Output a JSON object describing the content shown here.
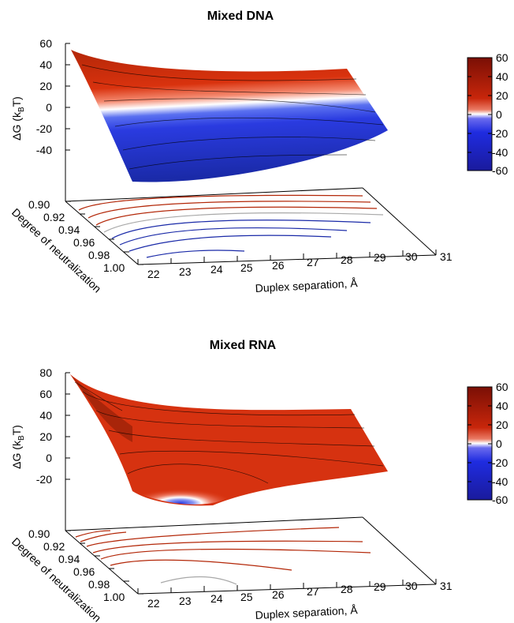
{
  "chart_data": [
    {
      "type": "surface",
      "title": "Mixed DNA",
      "xlabel": "Duplex separation, Å",
      "ylabel": "Degree of neutralization",
      "zlabel_main": "ΔG (k",
      "zlabel_sub": "B",
      "zlabel_end": "T)",
      "x_ticks": [
        "22",
        "23",
        "24",
        "25",
        "26",
        "27",
        "28",
        "29",
        "30",
        "31"
      ],
      "y_ticks": [
        "0.90",
        "0.92",
        "0.94",
        "0.96",
        "0.98",
        "1.00"
      ],
      "z_ticks": [
        "60",
        "40",
        "20",
        "0",
        "-20",
        "-40"
      ],
      "zlim": [
        -60,
        60
      ],
      "colorbar": {
        "ticks": [
          "60",
          "40",
          "20",
          "0",
          "-20",
          "-40",
          "-60"
        ],
        "range": [
          -60,
          60
        ],
        "colors": {
          "neg": "#1d1dbf",
          "zero": "#ffffff",
          "pos": "#b5200b"
        }
      },
      "surface_samples": {
        "x": [
          22,
          25,
          28,
          31
        ],
        "rows": [
          {
            "y": 0.9,
            "z": [
              51,
              25,
              17,
              18
            ]
          },
          {
            "y": 0.95,
            "z": [
              20,
              0,
              -2,
              2
            ]
          },
          {
            "y": 1.0,
            "z": [
              -47,
              -57,
              -52,
              -22
            ]
          }
        ]
      }
    },
    {
      "type": "surface",
      "title": "Mixed RNA",
      "xlabel": "Duplex separation, Å",
      "ylabel": "Degree of neutralization",
      "zlabel_main": "ΔG (k",
      "zlabel_sub": "B",
      "zlabel_end": "T)",
      "x_ticks": [
        "22",
        "23",
        "24",
        "25",
        "26",
        "27",
        "28",
        "29",
        "30",
        "31"
      ],
      "y_ticks": [
        "0.90",
        "0.92",
        "0.94",
        "0.96",
        "0.98",
        "1.00"
      ],
      "z_ticks": [
        "80",
        "60",
        "40",
        "20",
        "0",
        "-20"
      ],
      "zlim": [
        -40,
        80
      ],
      "colorbar": {
        "ticks": [
          "60",
          "40",
          "20",
          "0",
          "-20",
          "-40",
          "-60"
        ],
        "range": [
          -60,
          60
        ],
        "colors": {
          "neg": "#1d1dbf",
          "zero": "#ffffff",
          "pos": "#b5200b"
        }
      },
      "surface_samples": {
        "x": [
          22,
          25,
          28,
          31
        ],
        "rows": [
          {
            "y": 0.9,
            "z": [
              75,
              40,
              38,
              38
            ]
          },
          {
            "y": 0.95,
            "z": [
              38,
              22,
              20,
              20
            ]
          },
          {
            "y": 1.0,
            "z": [
              -20,
              -30,
              -15,
              0
            ]
          }
        ]
      }
    }
  ]
}
